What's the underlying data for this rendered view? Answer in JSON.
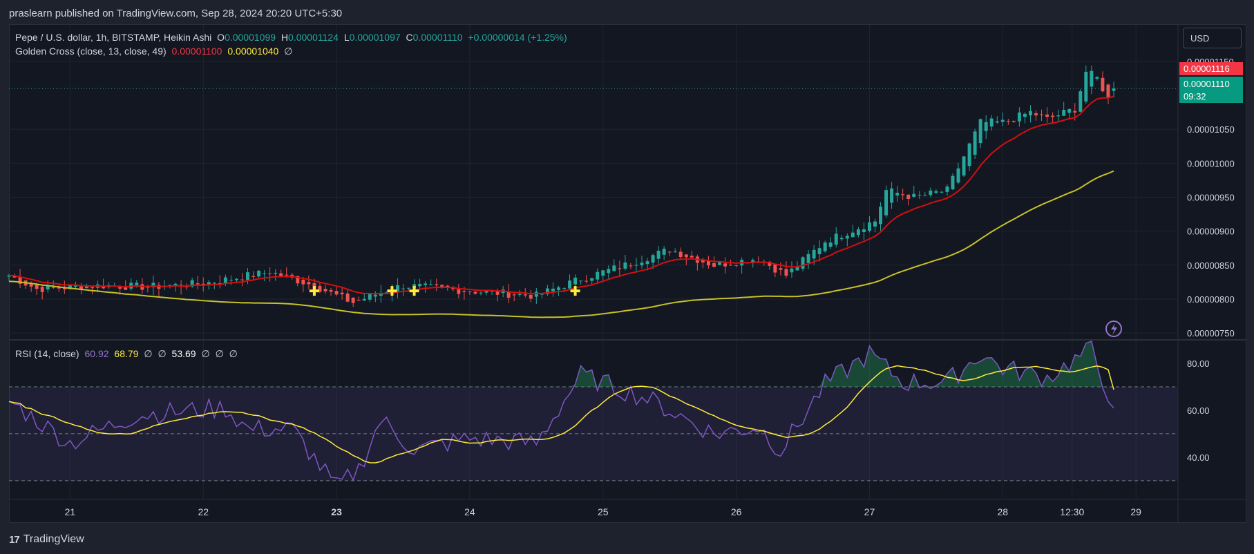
{
  "publish_line": "praslearn published on TradingView.com, Sep 28, 2024 20:20 UTC+5:30",
  "symbol_title": "Pepe / U.S. dollar, 1h, BITSTAMP, Heikin Ashi",
  "ohlc": {
    "o_label": "O",
    "o": "0.00001099",
    "h_label": "H",
    "h": "0.00001124",
    "l_label": "L",
    "l": "0.00001097",
    "c_label": "C",
    "c": "0.00001110",
    "change": "+0.00000014 (+1.25%)"
  },
  "golden_cross": {
    "label": "Golden Cross (close, 13, close, 49)",
    "fast": "0.00001100",
    "slow": "0.00001040",
    "extra": "∅"
  },
  "rsi_legend": {
    "label": "RSI (14, close)",
    "v1": "60.92",
    "v2": "68.79",
    "n1": "∅",
    "n2": "∅",
    "v3": "53.69",
    "n3": "∅",
    "n4": "∅",
    "n5": "∅"
  },
  "currency": "USD",
  "price_tag_red": "0.00001116",
  "price_tag_green": "0.00001110",
  "countdown": "09:32",
  "brand": "TradingView",
  "colors": {
    "up": "#26a69a",
    "down": "#ef5350",
    "fast_ma": "#d50f0f",
    "slow_ma": "#c8c227",
    "rsi": "#7e57c2",
    "rsi_ma": "#ffeb3b",
    "background": "#131722"
  },
  "chart_data": [
    {
      "type": "candlestick",
      "title": "Pepe / U.S. dollar, 1h, BITSTAMP, Heikin Ashi",
      "ylim": [
        7.4e-06,
        1.165e-05
      ],
      "ytick_values": [
        7.5e-06,
        8e-06,
        8.5e-06,
        9e-06,
        9.5e-06,
        1e-05,
        1.05e-05,
        1.15e-05
      ],
      "ytick_labels": [
        "0.00000750",
        "0.00000800",
        "0.00000850",
        "0.00000900",
        "0.00000950",
        "0.00001000",
        "0.00001050",
        "0.00001150"
      ],
      "xtick_labels": [
        "21",
        "22",
        "23",
        "24",
        "25",
        "26",
        "27",
        "28",
        "12:30",
        "29"
      ],
      "xtick_bold": "23",
      "anchors": [
        {
          "t": "2024-09-20 13:00",
          "close": 8.35e-06
        },
        {
          "t": "2024-09-20 18:00",
          "close": 8.15e-06
        },
        {
          "t": "2024-09-21 06:00",
          "close": 8.2e-06
        },
        {
          "t": "2024-09-21 14:00",
          "close": 8.18e-06
        },
        {
          "t": "2024-09-22 00:00",
          "close": 8.23e-06
        },
        {
          "t": "2024-09-22 12:00",
          "close": 8.4e-06
        },
        {
          "t": "2024-09-22 20:00",
          "close": 8.2e-06
        },
        {
          "t": "2024-09-23 00:00",
          "close": 8.05e-06
        },
        {
          "t": "2024-09-23 03:00",
          "close": 7.95e-06
        },
        {
          "t": "2024-09-23 08:00",
          "close": 8.1e-06
        },
        {
          "t": "2024-09-23 12:00",
          "close": 8.2e-06
        },
        {
          "t": "2024-09-24 00:00",
          "close": 8.12e-06
        },
        {
          "t": "2024-09-24 12:00",
          "close": 8.05e-06
        },
        {
          "t": "2024-09-24 20:00",
          "close": 8.3e-06
        },
        {
          "t": "2024-09-25 04:00",
          "close": 8.5e-06
        },
        {
          "t": "2024-09-25 12:00",
          "close": 8.73e-06
        },
        {
          "t": "2024-09-25 20:00",
          "close": 8.5e-06
        },
        {
          "t": "2024-09-26 04:00",
          "close": 8.6e-06
        },
        {
          "t": "2024-09-26 09:00",
          "close": 8.35e-06
        },
        {
          "t": "2024-09-26 16:00",
          "close": 8.85e-06
        },
        {
          "t": "2024-09-27 01:00",
          "close": 9.15e-06
        },
        {
          "t": "2024-09-27 03:00",
          "close": 9.6e-06
        },
        {
          "t": "2024-09-27 08:00",
          "close": 9.5e-06
        },
        {
          "t": "2024-09-27 14:00",
          "close": 9.6e-06
        },
        {
          "t": "2024-09-27 20:00",
          "close": 1.06e-05
        },
        {
          "t": "2024-09-28 00:00",
          "close": 1.06e-05
        },
        {
          "t": "2024-09-28 05:00",
          "close": 1.075e-05
        },
        {
          "t": "2024-09-28 08:00",
          "close": 1.065e-05
        },
        {
          "t": "2024-09-28 13:00",
          "close": 1.08e-05
        },
        {
          "t": "2024-09-28 15:00",
          "close": 1.135e-05
        },
        {
          "t": "2024-09-28 17:00",
          "close": 1.125e-05
        },
        {
          "t": "2024-09-28 19:00",
          "close": 1.095e-05
        },
        {
          "t": "2024-09-28 20:00",
          "close": 1.11e-05
        }
      ],
      "series": [
        {
          "name": "Golden Cross fast (13)",
          "last": 1.1e-05
        },
        {
          "name": "Golden Cross slow (49)",
          "last": 1.04e-05
        }
      ]
    },
    {
      "type": "line",
      "title": "RSI (14, close)",
      "ylim": [
        22,
        90
      ],
      "ytick_values": [
        40,
        60,
        80
      ],
      "ytick_labels": [
        "40.00",
        "60.00",
        "80.00"
      ],
      "bands": [
        30,
        50,
        70
      ],
      "series": [
        {
          "name": "RSI",
          "last": 60.92,
          "points": [
            {
              "t": "2024-09-20 13:00",
              "v": 64
            },
            {
              "t": "2024-09-21 00:00",
              "v": 46
            },
            {
              "t": "2024-09-21 12:00",
              "v": 58
            },
            {
              "t": "2024-09-22 04:00",
              "v": 61
            },
            {
              "t": "2024-09-22 08:00",
              "v": 52
            },
            {
              "t": "2024-09-22 16:00",
              "v": 52
            },
            {
              "t": "2024-09-23 00:00",
              "v": 27
            },
            {
              "t": "2024-09-23 04:00",
              "v": 35
            },
            {
              "t": "2024-09-23 08:00",
              "v": 56
            },
            {
              "t": "2024-09-23 14:00",
              "v": 43
            },
            {
              "t": "2024-09-24 00:00",
              "v": 48
            },
            {
              "t": "2024-09-24 12:00",
              "v": 46
            },
            {
              "t": "2024-09-24 20:00",
              "v": 75
            },
            {
              "t": "2024-09-25 08:00",
              "v": 65
            },
            {
              "t": "2024-09-25 20:00",
              "v": 50
            },
            {
              "t": "2024-09-26 04:00",
              "v": 53
            },
            {
              "t": "2024-09-26 08:00",
              "v": 43
            },
            {
              "t": "2024-09-26 16:00",
              "v": 71
            },
            {
              "t": "2024-09-27 00:00",
              "v": 84
            },
            {
              "t": "2024-09-27 06:00",
              "v": 72
            },
            {
              "t": "2024-09-27 14:00",
              "v": 72
            },
            {
              "t": "2024-09-27 20:00",
              "v": 84
            },
            {
              "t": "2024-09-28 00:00",
              "v": 78
            },
            {
              "t": "2024-09-28 08:00",
              "v": 74
            },
            {
              "t": "2024-09-28 16:00",
              "v": 86
            },
            {
              "t": "2024-09-28 20:00",
              "v": 60.92
            }
          ]
        },
        {
          "name": "RSI MA",
          "last": 68.79
        }
      ]
    }
  ]
}
